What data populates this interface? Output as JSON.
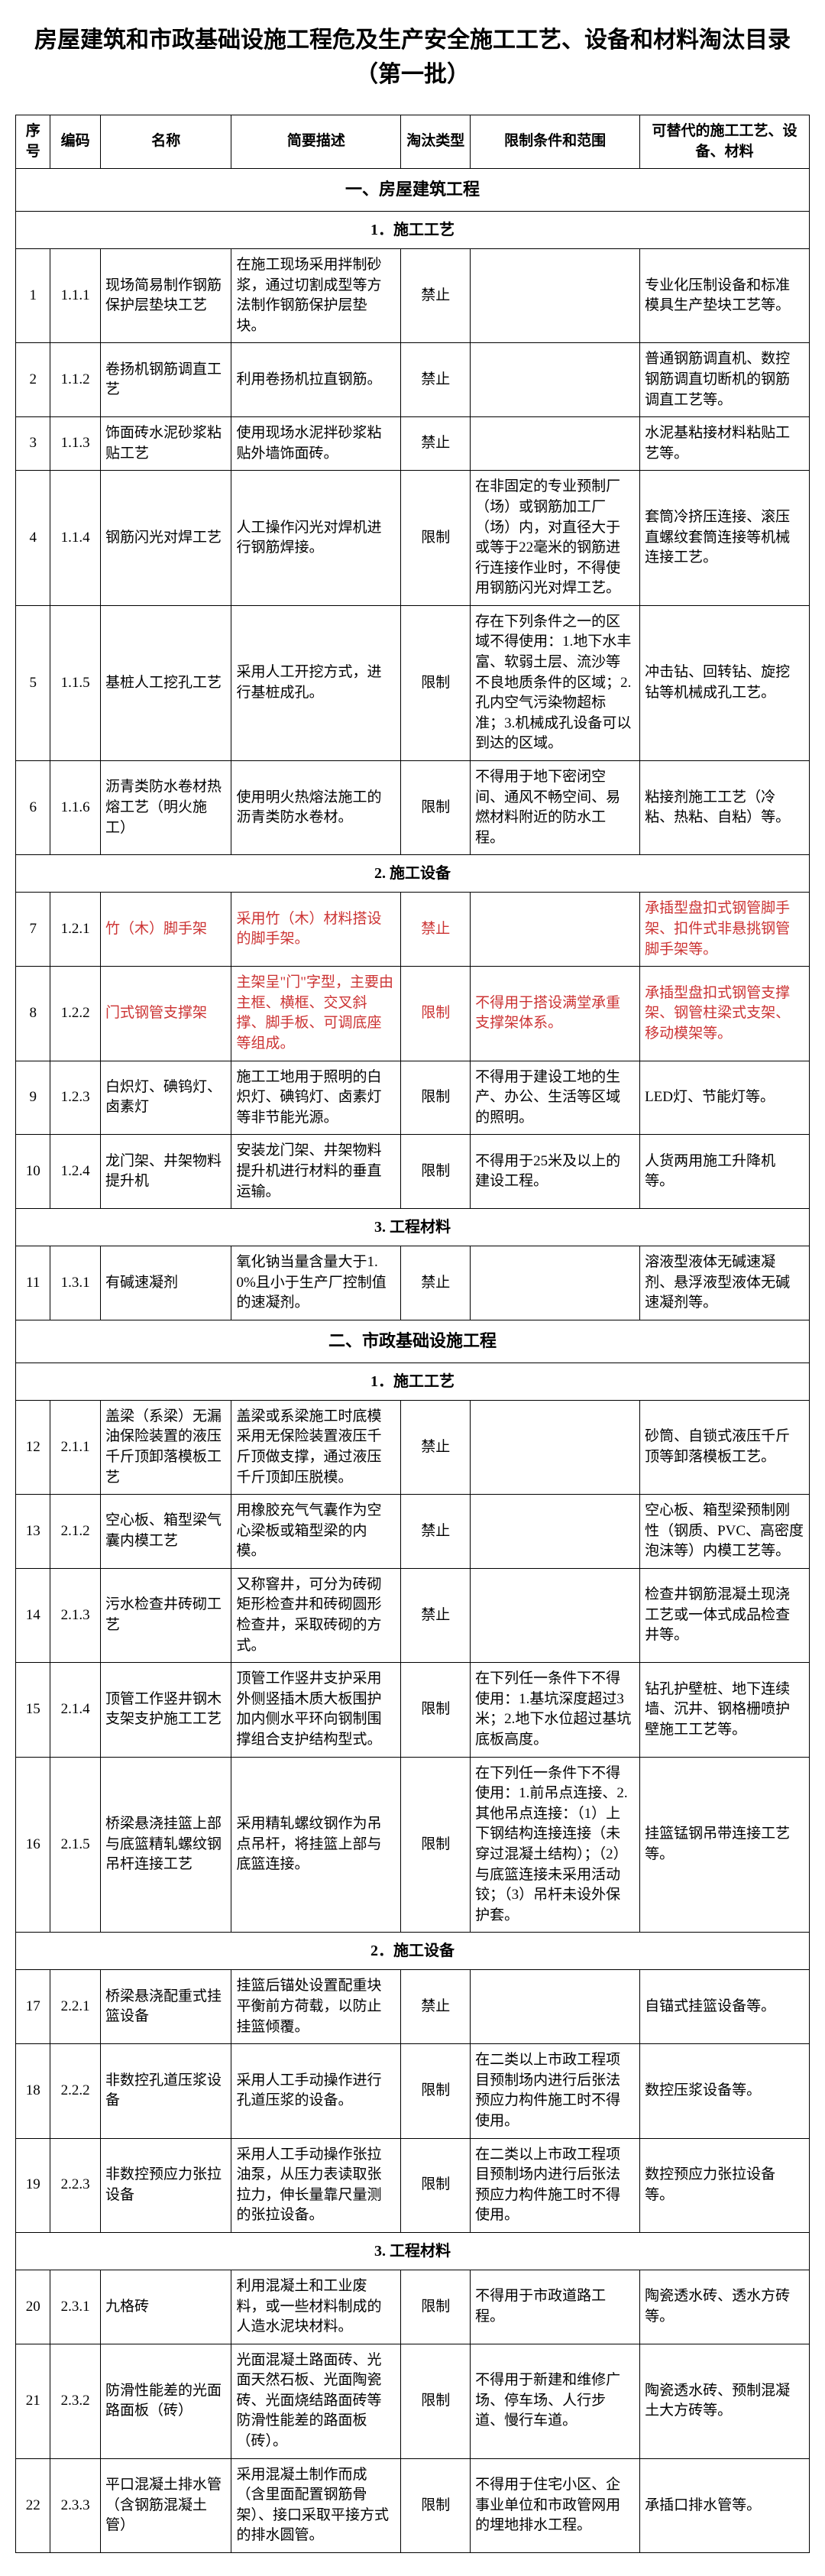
{
  "title": "房屋建筑和市政基础设施工程危及生产安全施工工艺、设备和材料淘汰目录（第一批）",
  "headers": {
    "seq": "序号",
    "code": "编码",
    "name": "名称",
    "desc": "简要描述",
    "type": "淘汰类型",
    "limit": "限制条件和范围",
    "alt": "可替代的施工工艺、设备、材料"
  },
  "sections": {
    "s1": "一、房屋建筑工程",
    "s1_1": "1．施工工艺",
    "s1_2": "2. 施工设备",
    "s1_3": "3. 工程材料",
    "s2": "二、市政基础设施工程",
    "s2_1": "1．施工工艺",
    "s2_2": "2．施工设备",
    "s2_3": "3. 工程材料"
  },
  "rows": {
    "r1": {
      "seq": "1",
      "code": "1.1.1",
      "name": "现场简易制作钢筋保护层垫块工艺",
      "desc": "在施工现场采用拌制砂浆，通过切割成型等方法制作钢筋保护层垫块。",
      "type": "禁止",
      "limit": "",
      "alt": "专业化压制设备和标准模具生产垫块工艺等。"
    },
    "r2": {
      "seq": "2",
      "code": "1.1.2",
      "name": "卷扬机钢筋调直工艺",
      "desc": "利用卷扬机拉直钢筋。",
      "type": "禁止",
      "limit": "",
      "alt": "普通钢筋调直机、数控钢筋调直切断机的钢筋调直工艺等。"
    },
    "r3": {
      "seq": "3",
      "code": "1.1.3",
      "name": "饰面砖水泥砂浆粘贴工艺",
      "desc": "使用现场水泥拌砂浆粘贴外墙饰面砖。",
      "type": "禁止",
      "limit": "",
      "alt": "水泥基粘接材料粘贴工艺等。"
    },
    "r4": {
      "seq": "4",
      "code": "1.1.4",
      "name": "钢筋闪光对焊工艺",
      "desc": "人工操作闪光对焊机进行钢筋焊接。",
      "type": "限制",
      "limit": "在非固定的专业预制厂（场）或钢筋加工厂（场）内，对直径大于或等于22毫米的钢筋进行连接作业时，不得使用钢筋闪光对焊工艺。",
      "alt": "套筒冷挤压连接、滚压直螺纹套筒连接等机械连接工艺。"
    },
    "r5": {
      "seq": "5",
      "code": "1.1.5",
      "name": "基桩人工挖孔工艺",
      "desc": "采用人工开挖方式，进行基桩成孔。",
      "type": "限制",
      "limit": "存在下列条件之一的区域不得使用：1.地下水丰富、软弱土层、流沙等不良地质条件的区域；2.孔内空气污染物超标准；3.机械成孔设备可以到达的区域。",
      "alt": "冲击钻、回转钻、旋挖钻等机械成孔工艺。"
    },
    "r6": {
      "seq": "6",
      "code": "1.1.6",
      "name": "沥青类防水卷材热熔工艺（明火施工）",
      "desc": "使用明火热熔法施工的沥青类防水卷材。",
      "type": "限制",
      "limit": "不得用于地下密闭空间、通风不畅空间、易燃材料附近的防水工程。",
      "alt": "粘接剂施工工艺（冷粘、热粘、自粘）等。"
    },
    "r7": {
      "seq": "7",
      "code": "1.2.1",
      "name": "竹（木）脚手架",
      "desc": "采用竹（木）材料搭设的脚手架。",
      "type": "禁止",
      "limit": "",
      "alt": "承插型盘扣式钢管脚手架、扣件式非悬挑钢管脚手架等。",
      "red": true
    },
    "r8": {
      "seq": "8",
      "code": "1.2.2",
      "name": "门式钢管支撑架",
      "desc": "主架呈\"门\"字型，主要由主框、横框、交叉斜撑、脚手板、可调底座等组成。",
      "type": "限制",
      "limit": "不得用于搭设满堂承重支撑架体系。",
      "alt": "承插型盘扣式钢管支撑架、钢管柱梁式支架、移动模架等。",
      "red": true
    },
    "r9": {
      "seq": "9",
      "code": "1.2.3",
      "name": "白炽灯、碘钨灯、卤素灯",
      "desc": "施工工地用于照明的白炽灯、碘钨灯、卤素灯等非节能光源。",
      "type": "限制",
      "limit": "不得用于建设工地的生产、办公、生活等区域的照明。",
      "alt": "LED灯、节能灯等。"
    },
    "r10": {
      "seq": "10",
      "code": "1.2.4",
      "name": "龙门架、井架物料提升机",
      "desc": "安装龙门架、井架物料提升机进行材料的垂直运输。",
      "type": "限制",
      "limit": "不得用于25米及以上的建设工程。",
      "alt": "人货两用施工升降机等。"
    },
    "r11": {
      "seq": "11",
      "code": "1.3.1",
      "name": "有碱速凝剂",
      "desc": "氧化钠当量含量大于1.0%且小于生产厂控制值的速凝剂。",
      "type": "禁止",
      "limit": "",
      "alt": "溶液型液体无碱速凝剂、悬浮液型液体无碱速凝剂等。"
    },
    "r12": {
      "seq": "12",
      "code": "2.1.1",
      "name": "盖梁（系梁）无漏油保险装置的液压千斤顶卸落模板工艺",
      "desc": "盖梁或系梁施工时底模采用无保险装置液压千斤顶做支撑，通过液压千斤顶卸压脱模。",
      "type": "禁止",
      "limit": "",
      "alt": "砂筒、自锁式液压千斤顶等卸落模板工艺。"
    },
    "r13": {
      "seq": "13",
      "code": "2.1.2",
      "name": "空心板、箱型梁气囊内模工艺",
      "desc": "用橡胶充气气囊作为空心梁板或箱型梁的内模。",
      "type": "禁止",
      "limit": "",
      "alt": "空心板、箱型梁预制刚性（钢质、PVC、高密度泡沫等）内模工艺等。"
    },
    "r14": {
      "seq": "14",
      "code": "2.1.3",
      "name": "污水检查井砖砌工艺",
      "desc": "又称窨井，可分为砖砌矩形检查井和砖砌圆形检查井，采取砖砌的方式。",
      "type": "禁止",
      "limit": "",
      "alt": "检查井钢筋混凝土现浇工艺或一体式成品检查井等。"
    },
    "r15": {
      "seq": "15",
      "code": "2.1.4",
      "name": "顶管工作竖井钢木支架支护施工工艺",
      "desc": "顶管工作竖井支护采用外侧竖插木质大板围护加内侧水平环向钢制围撑组合支护结构型式。",
      "type": "限制",
      "limit": "在下列任一条件下不得使用：1.基坑深度超过3米；2.地下水位超过基坑底板高度。",
      "alt": "钻孔护壁桩、地下连续墙、沉井、钢格栅喷护壁施工工艺等。"
    },
    "r16": {
      "seq": "16",
      "code": "2.1.5",
      "name": "桥梁悬浇挂篮上部与底篮精轧螺纹钢吊杆连接工艺",
      "desc": "采用精轧螺纹钢作为吊点吊杆，将挂篮上部与底篮连接。",
      "type": "限制",
      "limit": "在下列任一条件下不得使用：1.前吊点连接、2.其他吊点连接：（1）上下钢结构连接连接（未穿过混凝土结构）；（2）与底篮连接未采用活动铰；（3）吊杆未设外保护套。",
      "alt": "挂篮锰钢吊带连接工艺等。"
    },
    "r17": {
      "seq": "17",
      "code": "2.2.1",
      "name": "桥梁悬浇配重式挂篮设备",
      "desc": "挂篮后锚处设置配重块平衡前方荷载，以防止挂篮倾覆。",
      "type": "禁止",
      "limit": "",
      "alt": "自锚式挂篮设备等。"
    },
    "r18": {
      "seq": "18",
      "code": "2.2.2",
      "name": "非数控孔道压浆设备",
      "desc": "采用人工手动操作进行孔道压浆的设备。",
      "type": "限制",
      "limit": "在二类以上市政工程项目预制场内进行后张法预应力构件施工时不得使用。",
      "alt": "数控压浆设备等。"
    },
    "r19": {
      "seq": "19",
      "code": "2.2.3",
      "name": "非数控预应力张拉设备",
      "desc": "采用人工手动操作张拉油泵，从压力表读取张拉力，伸长量靠尺量测的张拉设备。",
      "type": "限制",
      "limit": "在二类以上市政工程项目预制场内进行后张法预应力构件施工时不得使用。",
      "alt": "数控预应力张拉设备等。"
    },
    "r20": {
      "seq": "20",
      "code": "2.3.1",
      "name": "九格砖",
      "desc": "利用混凝土和工业废料，或一些材料制成的人造水泥块材料。",
      "type": "限制",
      "limit": "不得用于市政道路工程。",
      "alt": "陶瓷透水砖、透水方砖等。"
    },
    "r21": {
      "seq": "21",
      "code": "2.3.2",
      "name": "防滑性能差的光面路面板（砖）",
      "desc": "光面混凝土路面砖、光面天然石板、光面陶瓷砖、光面烧结路面砖等防滑性能差的路面板（砖）。",
      "type": "限制",
      "limit": "不得用于新建和维修广场、停车场、人行步道、慢行车道。",
      "alt": "陶瓷透水砖、预制混凝土大方砖等。"
    },
    "r22": {
      "seq": "22",
      "code": "2.3.3",
      "name": "平口混凝土排水管（含钢筋混凝土管）",
      "desc": "采用混凝土制作而成（含里面配置钢筋骨架）、接口采取平接方式的排水圆管。",
      "type": "限制",
      "limit": "不得用于住宅小区、企事业单位和市政管网用的埋地排水工程。",
      "alt": "承插口排水管等。"
    }
  }
}
